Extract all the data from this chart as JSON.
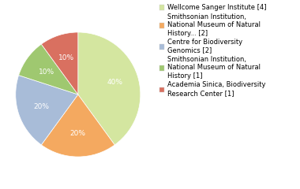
{
  "legend_labels": [
    "Wellcome Sanger Institute [4]",
    "Smithsonian Institution,\nNational Museum of Natural\nHistory... [2]",
    "Centre for Biodiversity\nGenomics [2]",
    "Smithsonian Institution,\nNational Museum of Natural\nHistory [1]",
    "Academia Sinica, Biodiversity\nResearch Center [1]"
  ],
  "values": [
    40,
    20,
    20,
    10,
    10
  ],
  "colors": [
    "#d4e6a0",
    "#f4a960",
    "#a8bcd8",
    "#9fc870",
    "#d97060"
  ],
  "pct_labels": [
    "40%",
    "20%",
    "20%",
    "10%",
    "10%"
  ],
  "startangle": 90,
  "font_size": 6.5,
  "legend_fontsize": 6.0
}
